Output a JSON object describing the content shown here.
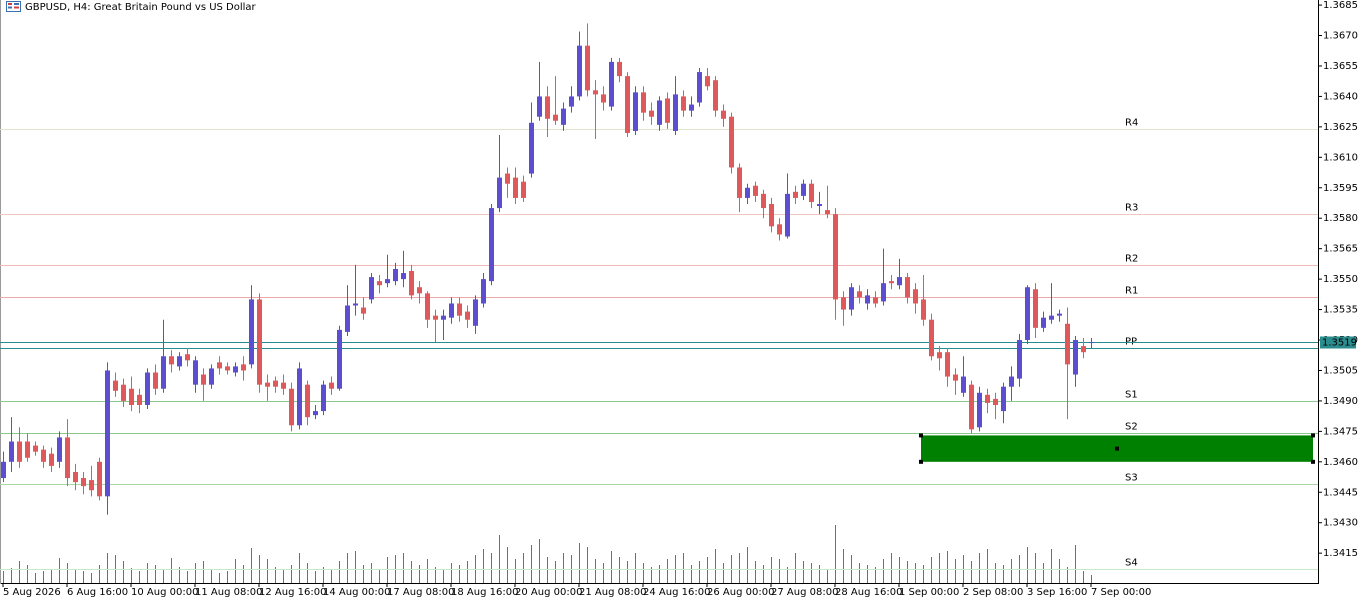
{
  "header": {
    "title": "GBPUSD, H4:  Great Britain Pound vs US Dollar"
  },
  "chart_data": {
    "type": "candlestick",
    "up_color": "#5b4fd0",
    "down_color": "#e0595a",
    "volume_color": "#1a9a86",
    "ylim": [
      1.34003,
      1.36875
    ],
    "yticks": [
      1.3685,
      {
        "value": 1.367,
        "label": "1.3670"
      },
      1.3655,
      {
        "value": 1.364,
        "label": "1.3640"
      },
      1.3625,
      {
        "value": 1.361,
        "label": "1.3610"
      },
      1.3595,
      {
        "value": 1.358,
        "label": "1.3580"
      },
      1.3565,
      {
        "value": 1.355,
        "label": "1.3550"
      },
      1.3535,
      {
        "value": 1.352,
        "label": "1.3520"
      },
      1.3505,
      {
        "value": 1.349,
        "label": "1.3490"
      },
      1.3475,
      {
        "value": 1.346,
        "label": "1.3460"
      },
      1.3445,
      {
        "value": 1.343,
        "label": "1.3430"
      },
      1.3415
    ],
    "current_price": 1.3519,
    "current_price_color": "#2a8c8c",
    "levels": [
      {
        "name": "R4",
        "value": 1.3624,
        "color": "#e07060",
        "line_color": "#dde6cc"
      },
      {
        "name": "R3",
        "value": 1.3582,
        "color": "#e07060",
        "line_color": "#f0c8c0"
      },
      {
        "name": "R2",
        "value": 1.3557,
        "color": "#e07060",
        "line_color": "#f0b8b8"
      },
      {
        "name": "R1",
        "value": 1.3541,
        "color": "#e07060",
        "line_color": "#eaa8a8"
      },
      {
        "name": "PP",
        "value": 1.3516,
        "color": "#4a90d9",
        "line_color": "#2a8c8c"
      },
      {
        "name": "S1",
        "value": 1.349,
        "color": "#3f9a3f",
        "line_color": "#8cc88c"
      },
      {
        "name": "S2",
        "value": 1.3474,
        "color": "#3f9a3f",
        "line_color": "#8cc88c"
      },
      {
        "name": "S3",
        "value": 1.3449,
        "color": "#3f9a3f",
        "line_color": "#a8d8a8"
      },
      {
        "name": "S4",
        "value": 1.3407,
        "color": "#3f9a3f",
        "line_color": "#c8e8c8"
      }
    ],
    "zone": {
      "high": 1.3473,
      "low": 1.346,
      "start": 115,
      "color": "#008000"
    },
    "x": [
      "5 Aug 2026",
      null,
      null,
      null,
      null,
      null,
      null,
      null,
      "6 Aug 16:00",
      null,
      null,
      null,
      null,
      null,
      null,
      null,
      "10 Aug 00:00",
      null,
      null,
      null,
      null,
      null,
      null,
      null,
      "11 Aug 08:00",
      null,
      null,
      null,
      null,
      null,
      null,
      null,
      "12 Aug 16:00",
      null,
      null,
      null,
      null,
      null,
      null,
      null,
      "14 Aug 00:00",
      null,
      null,
      null,
      null,
      null,
      null,
      null,
      "17 Aug 08:00",
      null,
      null,
      null,
      null,
      null,
      null,
      null,
      "18 Aug 16:00",
      null,
      null,
      null,
      null,
      null,
      null,
      null,
      "20 Aug 00:00",
      null,
      null,
      null,
      null,
      null,
      null,
      null,
      "21 Aug 08:00",
      null,
      null,
      null,
      null,
      null,
      null,
      null,
      "24 Aug 16:00",
      null,
      null,
      null,
      null,
      null,
      null,
      null,
      "26 Aug 00:00",
      null,
      null,
      null,
      null,
      null,
      null,
      null,
      "27 Aug 08:00",
      null,
      null,
      null,
      null,
      null,
      null,
      null,
      "28 Aug 16:00",
      null,
      null,
      null,
      null,
      null,
      null,
      null,
      "1 Sep 00:00",
      null,
      null,
      null,
      null,
      null,
      null,
      null,
      "2 Sep 08:00",
      null,
      null,
      null,
      null,
      null,
      null,
      null,
      "3 Sep 16:00",
      null,
      null,
      null,
      null,
      null,
      null,
      null,
      "7 Sep 00:00"
    ],
    "ohlc": [
      [
        1.3452,
        1.3465,
        1.345,
        1.346
      ],
      [
        1.346,
        1.3482,
        1.3455,
        1.347
      ],
      [
        1.347,
        1.3477,
        1.3457,
        1.346
      ],
      [
        1.347,
        1.3474,
        1.346,
        1.3462
      ],
      [
        1.3468,
        1.347,
        1.3463,
        1.3465
      ],
      [
        1.3466,
        1.3468,
        1.3457,
        1.346
      ],
      [
        1.3464,
        1.3467,
        1.3455,
        1.3458
      ],
      [
        1.346,
        1.3475,
        1.3457,
        1.3472
      ],
      [
        1.3472,
        1.3481,
        1.3448,
        1.3452
      ],
      [
        1.3455,
        1.3459,
        1.3446,
        1.345
      ],
      [
        1.3452,
        1.3455,
        1.3444,
        1.3448
      ],
      [
        1.3451,
        1.3458,
        1.3443,
        1.3446
      ],
      [
        1.346,
        1.3462,
        1.3441,
        1.3443
      ],
      [
        1.3443,
        1.3509,
        1.3434,
        1.3505
      ],
      [
        1.35,
        1.3504,
        1.3492,
        1.3495
      ],
      [
        1.3498,
        1.3501,
        1.3487,
        1.349
      ],
      [
        1.3496,
        1.3502,
        1.3485,
        1.3488
      ],
      [
        1.3493,
        1.3496,
        1.3484,
        1.3488
      ],
      [
        1.3488,
        1.3506,
        1.3486,
        1.3504
      ],
      [
        1.3504,
        1.3508,
        1.3493,
        1.3496
      ],
      [
        1.3496,
        1.353,
        1.3494,
        1.3512
      ],
      [
        1.3512,
        1.3515,
        1.3504,
        1.3508
      ],
      [
        1.3507,
        1.3514,
        1.3505,
        1.3512
      ],
      [
        1.3513,
        1.3516,
        1.3507,
        1.351
      ],
      [
        1.3498,
        1.3512,
        1.3494,
        1.351
      ],
      [
        1.3503,
        1.3506,
        1.349,
        1.3498
      ],
      [
        1.3498,
        1.3508,
        1.3496,
        1.3506
      ],
      [
        1.3509,
        1.3512,
        1.3503,
        1.3506
      ],
      [
        1.3507,
        1.3509,
        1.3503,
        1.3505
      ],
      [
        1.3504,
        1.3509,
        1.3502,
        1.3507
      ],
      [
        1.3508,
        1.3512,
        1.35,
        1.3505
      ],
      [
        1.3508,
        1.3547,
        1.3506,
        1.354
      ],
      [
        1.354,
        1.3543,
        1.3494,
        1.3498
      ],
      [
        1.3499,
        1.3503,
        1.349,
        1.3497
      ],
      [
        1.35,
        1.3502,
        1.3494,
        1.3497
      ],
      [
        1.3499,
        1.3503,
        1.3493,
        1.3496
      ],
      [
        1.3496,
        1.3499,
        1.3475,
        1.3478
      ],
      [
        1.3478,
        1.3509,
        1.3476,
        1.3506
      ],
      [
        1.3498,
        1.35,
        1.3478,
        1.3482
      ],
      [
        1.3483,
        1.3488,
        1.3481,
        1.3485
      ],
      [
        1.3485,
        1.35,
        1.3483,
        1.3498
      ],
      [
        1.3499,
        1.3502,
        1.3493,
        1.3496
      ],
      [
        1.3496,
        1.3527,
        1.3495,
        1.3525
      ],
      [
        1.3524,
        1.3547,
        1.3522,
        1.3537
      ],
      [
        1.3537,
        1.3557,
        1.3532,
        1.3538
      ],
      [
        1.3536,
        1.3541,
        1.353,
        1.3533
      ],
      [
        1.354,
        1.3553,
        1.3538,
        1.3551
      ],
      [
        1.3549,
        1.3552,
        1.3543,
        1.3547
      ],
      [
        1.3548,
        1.3562,
        1.3546,
        1.355
      ],
      [
        1.3549,
        1.3558,
        1.3547,
        1.3555
      ],
      [
        1.355,
        1.3564,
        1.3546,
        1.3553
      ],
      [
        1.3554,
        1.3557,
        1.354,
        1.3542
      ],
      [
        1.3546,
        1.3549,
        1.3538,
        1.3543
      ],
      [
        1.3543,
        1.3544,
        1.3526,
        1.353
      ],
      [
        1.3532,
        1.3535,
        1.3519,
        1.353
      ],
      [
        1.353,
        1.3535,
        1.352,
        1.3532
      ],
      [
        1.3531,
        1.3541,
        1.3528,
        1.3538
      ],
      [
        1.3538,
        1.3541,
        1.3529,
        1.3532
      ],
      [
        1.3534,
        1.3537,
        1.3526,
        1.353
      ],
      [
        1.3527,
        1.3542,
        1.3523,
        1.354
      ],
      [
        1.3538,
        1.3553,
        1.3536,
        1.355
      ],
      [
        1.3549,
        1.3587,
        1.3547,
        1.3585
      ],
      [
        1.3585,
        1.3621,
        1.3583,
        1.36
      ],
      [
        1.3602,
        1.3605,
        1.359,
        1.3597
      ],
      [
        1.36,
        1.3605,
        1.3587,
        1.359
      ],
      [
        1.3598,
        1.3601,
        1.3588,
        1.359
      ],
      [
        1.3602,
        1.3637,
        1.36,
        1.3627
      ],
      [
        1.363,
        1.3657,
        1.3628,
        1.364
      ],
      [
        1.364,
        1.3645,
        1.362,
        1.3629
      ],
      [
        1.3631,
        1.365,
        1.3626,
        1.3628
      ],
      [
        1.3626,
        1.3637,
        1.3623,
        1.3634
      ],
      [
        1.3635,
        1.3645,
        1.3632,
        1.364
      ],
      [
        1.364,
        1.3672,
        1.3638,
        1.3665
      ],
      [
        1.3665,
        1.3676,
        1.364,
        1.3643
      ],
      [
        1.3643,
        1.3648,
        1.3619,
        1.3641
      ],
      [
        1.3641,
        1.3645,
        1.3633,
        1.3637
      ],
      [
        1.3635,
        1.3659,
        1.3633,
        1.3657
      ],
      [
        1.3657,
        1.3659,
        1.3647,
        1.365
      ],
      [
        1.365,
        1.3652,
        1.362,
        1.3622
      ],
      [
        1.3623,
        1.3645,
        1.3621,
        1.3642
      ],
      [
        1.3642,
        1.3645,
        1.3628,
        1.3632
      ],
      [
        1.3633,
        1.3637,
        1.3626,
        1.363
      ],
      [
        1.3626,
        1.364,
        1.3623,
        1.3638
      ],
      [
        1.3639,
        1.3642,
        1.3624,
        1.3627
      ],
      [
        1.3623,
        1.365,
        1.3621,
        1.3641
      ],
      [
        1.364,
        1.3643,
        1.363,
        1.3633
      ],
      [
        1.3633,
        1.364,
        1.363,
        1.3636
      ],
      [
        1.3637,
        1.3654,
        1.3635,
        1.3652
      ],
      [
        1.365,
        1.3654,
        1.3643,
        1.3645
      ],
      [
        1.3648,
        1.365,
        1.363,
        1.3633
      ],
      [
        1.3633,
        1.3636,
        1.3625,
        1.3629
      ],
      [
        1.363,
        1.3632,
        1.3602,
        1.3605
      ],
      [
        1.3605,
        1.3607,
        1.3583,
        1.359
      ],
      [
        1.359,
        1.3597,
        1.3587,
        1.3595
      ],
      [
        1.3596,
        1.3598,
        1.3588,
        1.3591
      ],
      [
        1.3592,
        1.3594,
        1.358,
        1.3585
      ],
      [
        1.3587,
        1.359,
        1.3573,
        1.3576
      ],
      [
        1.3577,
        1.358,
        1.3569,
        1.3572
      ],
      [
        1.3571,
        1.3602,
        1.357,
        1.3592
      ],
      [
        1.3593,
        1.3596,
        1.3587,
        1.359
      ],
      [
        1.3591,
        1.3599,
        1.3589,
        1.3597
      ],
      [
        1.3597,
        1.3599,
        1.3585,
        1.3588
      ],
      [
        1.3586,
        1.3593,
        1.3582,
        1.3587
      ],
      [
        1.3584,
        1.3596,
        1.358,
        1.3582
      ],
      [
        1.3582,
        1.3585,
        1.353,
        1.354
      ],
      [
        1.3541,
        1.3544,
        1.3527,
        1.3535
      ],
      [
        1.3535,
        1.3548,
        1.3532,
        1.3546
      ],
      [
        1.3544,
        1.3547,
        1.3538,
        1.3541
      ],
      [
        1.3538,
        1.3545,
        1.3535,
        1.3542
      ],
      [
        1.3541,
        1.3544,
        1.3536,
        1.3538
      ],
      [
        1.3539,
        1.3565,
        1.3537,
        1.3548
      ],
      [
        1.3549,
        1.3552,
        1.3545,
        1.3548
      ],
      [
        1.3547,
        1.356,
        1.3545,
        1.3551
      ],
      [
        1.3551,
        1.3553,
        1.3538,
        1.3541
      ],
      [
        1.3545,
        1.3548,
        1.3533,
        1.3538
      ],
      [
        1.354,
        1.3552,
        1.3527,
        1.353
      ],
      [
        1.353,
        1.3533,
        1.351,
        1.3512
      ],
      [
        1.3514,
        1.3517,
        1.3505,
        1.3511
      ],
      [
        1.3514,
        1.3516,
        1.3497,
        1.3502
      ],
      [
        1.3503,
        1.3506,
        1.3493,
        1.35
      ],
      [
        1.3494,
        1.3512,
        1.3492,
        1.3502
      ],
      [
        1.3498,
        1.35,
        1.3474,
        1.3476
      ],
      [
        1.3477,
        1.3497,
        1.3475,
        1.3494
      ],
      [
        1.3493,
        1.3496,
        1.3484,
        1.3489
      ],
      [
        1.3491,
        1.3494,
        1.3481,
        1.3488
      ],
      [
        1.3485,
        1.3499,
        1.3479,
        1.3497
      ],
      [
        1.3497,
        1.3507,
        1.349,
        1.3502
      ],
      [
        1.3501,
        1.3523,
        1.3497,
        1.352
      ],
      [
        1.352,
        1.3547,
        1.3518,
        1.3546
      ],
      [
        1.3545,
        1.3548,
        1.3521,
        1.3526
      ],
      [
        1.3526,
        1.3534,
        1.3524,
        1.3531
      ],
      [
        1.353,
        1.3548,
        1.3528,
        1.3532
      ],
      [
        1.3532,
        1.3535,
        1.3529,
        1.3533
      ],
      [
        1.3528,
        1.3536,
        1.3481,
        1.3508
      ],
      [
        1.3503,
        1.3522,
        1.3497,
        1.352
      ],
      [
        1.3517,
        1.3521,
        1.3511,
        1.3514
      ],
      [
        1.3519,
        1.3521,
        1.3516,
        1.3519
      ]
    ],
    "volume": [
      12,
      15,
      22,
      18,
      10,
      12,
      14,
      25,
      20,
      14,
      12,
      10,
      18,
      30,
      28,
      22,
      15,
      12,
      20,
      18,
      14,
      25,
      16,
      12,
      20,
      22,
      14,
      10,
      12,
      24,
      18,
      35,
      28,
      24,
      16,
      14,
      18,
      30,
      20,
      12,
      16,
      14,
      22,
      30,
      32,
      18,
      20,
      14,
      26,
      28,
      30,
      22,
      18,
      24,
      16,
      14,
      20,
      18,
      22,
      28,
      34,
      30,
      48,
      36,
      24,
      30,
      38,
      44,
      26,
      22,
      30,
      28,
      40,
      36,
      24,
      20,
      32,
      26,
      22,
      30,
      20,
      16,
      18,
      24,
      28,
      30,
      18,
      22,
      26,
      34,
      20,
      28,
      30,
      36,
      22,
      18,
      26,
      24,
      16,
      30,
      22,
      20,
      18,
      14,
      58,
      34,
      28,
      20,
      18,
      16,
      24,
      30,
      26,
      22,
      20,
      18,
      26,
      30,
      32,
      24,
      28,
      22,
      30,
      34,
      20,
      18,
      24,
      28,
      36,
      30,
      20,
      34,
      24,
      16,
      38,
      12,
      8
    ]
  }
}
